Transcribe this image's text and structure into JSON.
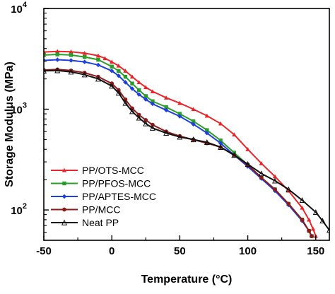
{
  "chart_data": {
    "type": "line",
    "title": "",
    "xlabel": "Temperature (°C)",
    "ylabel": "Storage Modulus (MPa)",
    "xlim": [
      -50,
      160
    ],
    "ylim": [
      50,
      10000
    ],
    "yscale": "log",
    "x_ticks": [
      -50,
      0,
      50,
      100,
      150
    ],
    "y_ticks": [
      {
        "value": 100,
        "base": "10",
        "exp": "2"
      },
      {
        "value": 1000,
        "base": "10",
        "exp": "3"
      },
      {
        "value": 10000,
        "base": "10",
        "exp": "4"
      }
    ],
    "grid": false,
    "legend_position": "bottom-left",
    "series": [
      {
        "name": "PP/OTS-MCC",
        "color": "#e8262a",
        "marker": "triangle",
        "points": [
          [
            -50,
            3700
          ],
          [
            -40,
            3750
          ],
          [
            -30,
            3720
          ],
          [
            -20,
            3600
          ],
          [
            -10,
            3400
          ],
          [
            -5,
            3200
          ],
          [
            0,
            2950
          ],
          [
            5,
            2700
          ],
          [
            10,
            2400
          ],
          [
            15,
            2100
          ],
          [
            20,
            1850
          ],
          [
            25,
            1650
          ],
          [
            30,
            1500
          ],
          [
            40,
            1300
          ],
          [
            50,
            1150
          ],
          [
            60,
            1000
          ],
          [
            70,
            860
          ],
          [
            80,
            720
          ],
          [
            90,
            560
          ],
          [
            100,
            400
          ],
          [
            110,
            290
          ],
          [
            120,
            215
          ],
          [
            130,
            155
          ],
          [
            140,
            105
          ],
          [
            145,
            80
          ],
          [
            148,
            65
          ],
          [
            150,
            55
          ]
        ]
      },
      {
        "name": "PP/PFOS-MCC",
        "color": "#2a9d2a",
        "marker": "square",
        "points": [
          [
            -50,
            3450
          ],
          [
            -40,
            3500
          ],
          [
            -30,
            3450
          ],
          [
            -20,
            3300
          ],
          [
            -10,
            3100
          ],
          [
            0,
            2650
          ],
          [
            5,
            2400
          ],
          [
            10,
            2100
          ],
          [
            15,
            1800
          ],
          [
            20,
            1550
          ],
          [
            25,
            1350
          ],
          [
            30,
            1200
          ],
          [
            40,
            1050
          ],
          [
            50,
            900
          ],
          [
            60,
            760
          ],
          [
            70,
            620
          ],
          [
            80,
            490
          ],
          [
            90,
            370
          ],
          [
            100,
            280
          ],
          [
            110,
            210
          ],
          [
            120,
            160
          ],
          [
            130,
            115
          ],
          [
            140,
            80
          ],
          [
            145,
            62
          ],
          [
            147,
            55
          ]
        ]
      },
      {
        "name": "PP/APTES-MCC",
        "color": "#1f3fdc",
        "marker": "diamond",
        "points": [
          [
            -50,
            3050
          ],
          [
            -40,
            3100
          ],
          [
            -30,
            3050
          ],
          [
            -20,
            2950
          ],
          [
            -10,
            2750
          ],
          [
            0,
            2400
          ],
          [
            5,
            2150
          ],
          [
            10,
            1850
          ],
          [
            15,
            1600
          ],
          [
            20,
            1400
          ],
          [
            25,
            1250
          ],
          [
            30,
            1130
          ],
          [
            40,
            980
          ],
          [
            50,
            850
          ],
          [
            60,
            710
          ],
          [
            70,
            580
          ],
          [
            80,
            460
          ],
          [
            90,
            350
          ],
          [
            100,
            270
          ],
          [
            110,
            205
          ],
          [
            120,
            155
          ],
          [
            130,
            112
          ],
          [
            140,
            78
          ],
          [
            145,
            62
          ],
          [
            147,
            55
          ]
        ]
      },
      {
        "name": "PP/MCC",
        "color": "#8b1a1a",
        "marker": "circle",
        "points": [
          [
            -50,
            2450
          ],
          [
            -40,
            2480
          ],
          [
            -30,
            2420
          ],
          [
            -20,
            2300
          ],
          [
            -10,
            2100
          ],
          [
            0,
            1800
          ],
          [
            5,
            1550
          ],
          [
            10,
            1250
          ],
          [
            15,
            1020
          ],
          [
            20,
            880
          ],
          [
            25,
            780
          ],
          [
            30,
            700
          ],
          [
            40,
            600
          ],
          [
            50,
            540
          ],
          [
            60,
            500
          ],
          [
            70,
            460
          ],
          [
            80,
            420
          ],
          [
            90,
            350
          ],
          [
            100,
            280
          ],
          [
            110,
            210
          ],
          [
            120,
            160
          ],
          [
            130,
            115
          ],
          [
            140,
            80
          ],
          [
            145,
            62
          ],
          [
            147,
            55
          ]
        ]
      },
      {
        "name": "Neat PP",
        "color": "#111111",
        "marker": "star",
        "points": [
          [
            -50,
            2400
          ],
          [
            -40,
            2420
          ],
          [
            -30,
            2350
          ],
          [
            -20,
            2200
          ],
          [
            -10,
            2000
          ],
          [
            0,
            1700
          ],
          [
            5,
            1450
          ],
          [
            10,
            1150
          ],
          [
            15,
            950
          ],
          [
            20,
            820
          ],
          [
            25,
            720
          ],
          [
            30,
            650
          ],
          [
            40,
            580
          ],
          [
            50,
            530
          ],
          [
            60,
            500
          ],
          [
            70,
            470
          ],
          [
            80,
            420
          ],
          [
            90,
            350
          ],
          [
            100,
            285
          ],
          [
            110,
            230
          ],
          [
            120,
            195
          ],
          [
            130,
            160
          ],
          [
            140,
            125
          ],
          [
            150,
            95
          ],
          [
            155,
            78
          ],
          [
            160,
            63
          ]
        ]
      }
    ]
  }
}
